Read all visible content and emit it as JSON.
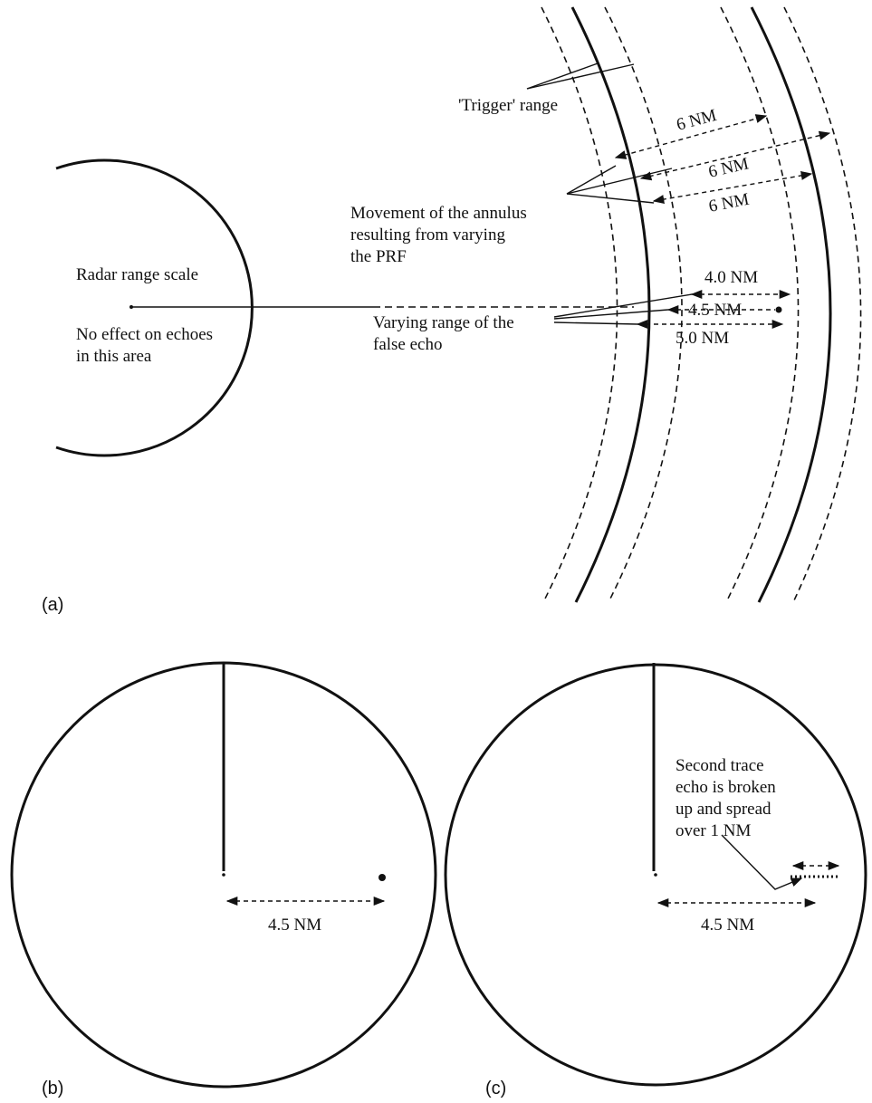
{
  "panel_a": {
    "caption": "(a)",
    "radar_range_scale": "Radar range scale",
    "no_effect_line1": "No effect on echoes",
    "no_effect_line2": "in this area",
    "trigger_range": "'Trigger' range",
    "movement_line1": "Movement of the annulus",
    "movement_line2": "resulting from varying",
    "movement_line3": "the PRF",
    "varying_line1": "Varying range of the",
    "varying_line2": "false echo",
    "dim_6nm_1": "6 NM",
    "dim_6nm_2": "6 NM",
    "dim_6nm_3": "6 NM",
    "dim_4_0": "4.0 NM",
    "dim_4_5": "4.5 NM",
    "dim_5_0": "5.0 NM"
  },
  "panel_b": {
    "caption": "(b)",
    "dim_label": "4.5 NM"
  },
  "panel_c": {
    "caption": "(c)",
    "note_line1": "Second trace",
    "note_line2": "echo is broken",
    "note_line3": "up and spread",
    "note_line4": "over 1 NM",
    "dim_label": "4.5 NM"
  }
}
